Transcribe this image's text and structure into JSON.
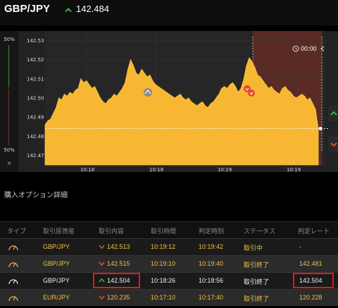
{
  "header": {
    "pair": "GBP/JPY",
    "price": "142.484"
  },
  "gauge": {
    "top_label": "50%",
    "bottom_label": "50%",
    "close": "×"
  },
  "timer": "00:00",
  "chart_data": {
    "type": "area",
    "y_ticks": [
      "142.53",
      "142.52",
      "142.51",
      "142.50",
      "142.49",
      "142.48",
      "142.47"
    ],
    "x_ticks": [
      "10:18",
      "10:18",
      "10:19",
      "10:19"
    ],
    "ylim": [
      142.465,
      142.535
    ],
    "values": [
      142.486,
      142.488,
      142.489,
      142.492,
      142.495,
      142.5,
      142.499,
      142.502,
      142.501,
      142.503,
      142.502,
      142.504,
      142.505,
      142.51,
      142.508,
      142.509,
      142.507,
      142.505,
      142.506,
      142.503,
      142.5,
      142.498,
      142.497,
      142.499,
      142.5,
      142.502,
      142.501,
      142.503,
      142.505,
      142.508,
      142.515,
      142.52,
      142.517,
      142.513,
      142.512,
      142.515,
      142.513,
      142.511,
      142.512,
      142.509,
      142.507,
      142.506,
      142.505,
      142.504,
      142.503,
      142.502,
      142.501,
      142.5,
      142.501,
      142.502,
      142.5,
      142.499,
      142.5,
      142.498,
      142.497,
      142.496,
      142.497,
      142.498,
      142.496,
      142.495,
      142.497,
      142.498,
      142.5,
      142.502,
      142.505,
      142.506,
      142.505,
      142.507,
      142.508,
      142.506,
      142.503,
      142.505,
      142.51,
      142.517,
      142.521,
      142.519,
      142.516,
      142.512,
      142.511,
      142.509,
      142.507,
      142.505,
      142.506,
      142.504,
      142.503,
      142.502,
      142.505,
      142.506,
      142.504,
      142.503,
      142.501,
      142.5,
      142.501,
      142.502,
      142.501,
      142.499,
      142.5,
      142.497,
      142.494,
      142.484
    ],
    "current_line": 142.484
  },
  "section_title": "購入オプション詳細",
  "table": {
    "headers": [
      "タイプ",
      "取引原資産",
      "取引内容",
      "取引時間",
      "判定時刻",
      "ステータス",
      "判定レート"
    ],
    "rows": [
      {
        "pair": "GBP/JPY",
        "direction": "down",
        "rate": "142.513",
        "time": "10:19:12",
        "judge": "10:19:42",
        "status": "取引中",
        "result": "-"
      },
      {
        "pair": "GBP/JPY",
        "direction": "down",
        "rate": "142.515",
        "time": "10:19:10",
        "judge": "10:19:40",
        "status": "取引終了",
        "result": "142.481"
      },
      {
        "pair": "GBP/JPY",
        "direction": "up",
        "rate": "142.504",
        "time": "10:18:26",
        "judge": "10:18:56",
        "status": "取引終了",
        "result": "142.504"
      },
      {
        "pair": "EUR/JPY",
        "direction": "down",
        "rate": "120.235",
        "time": "10:17:10",
        "judge": "10:17:40",
        "status": "取引終了",
        "result": "120.228"
      }
    ]
  },
  "colors": {
    "gold": "#f5c03b",
    "area": "#f7b733",
    "expiry_zone": "#5a2a24",
    "up": "#3cb043",
    "down": "#e34b2b",
    "highlight": "#e01a1a"
  }
}
